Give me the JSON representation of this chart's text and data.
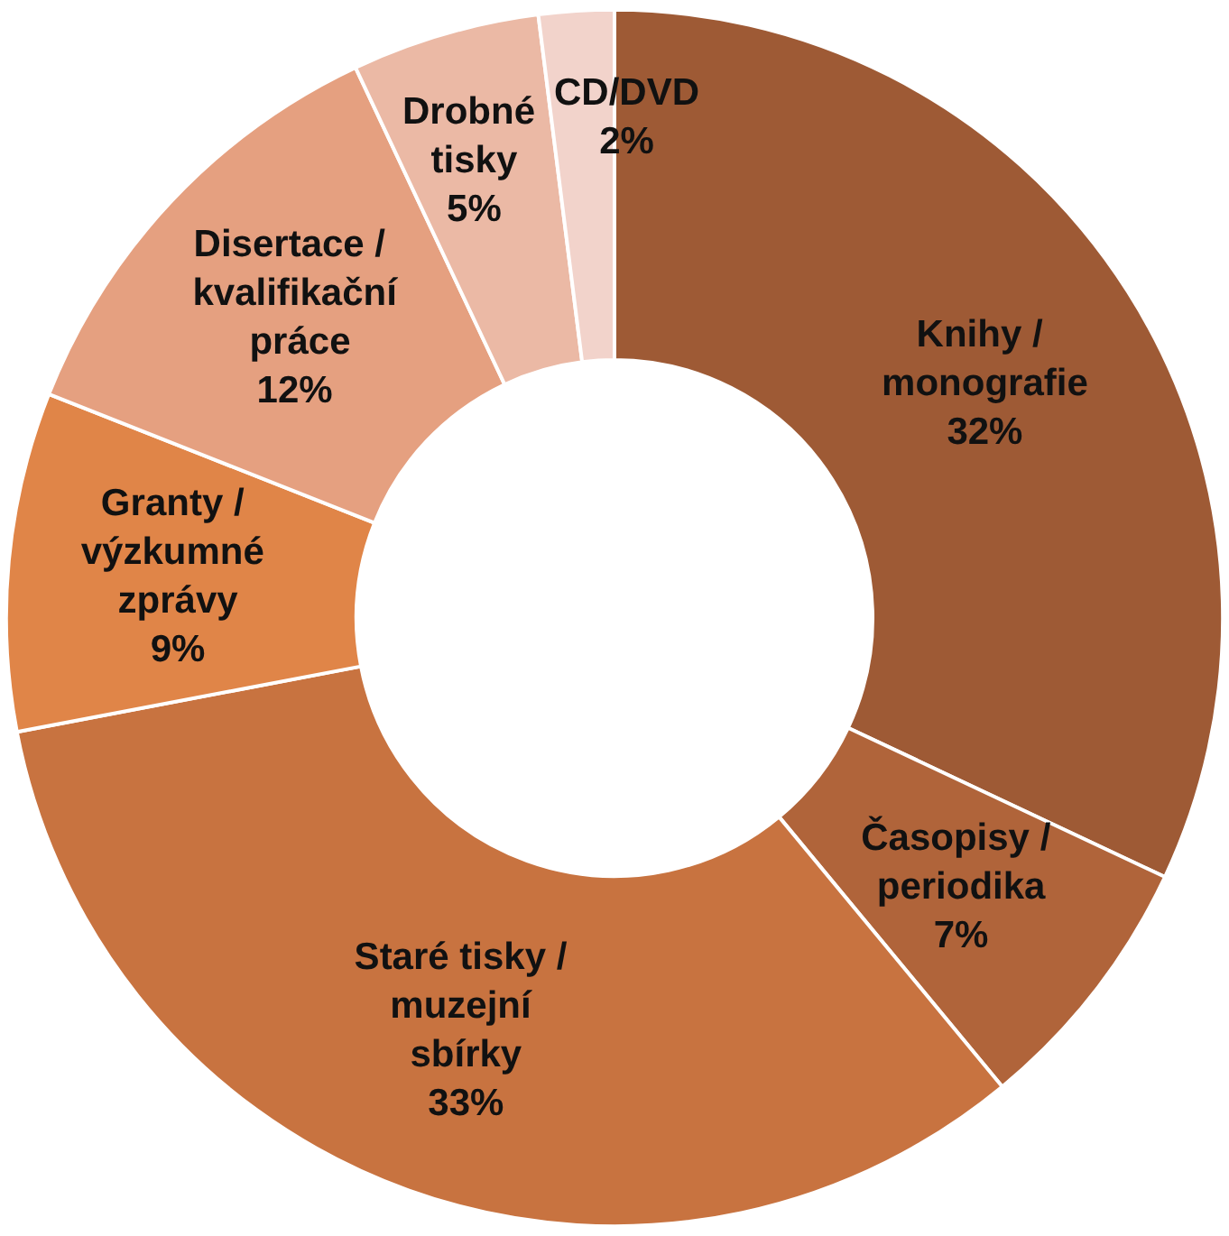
{
  "chart_data": {
    "type": "donut",
    "categories": [
      "Knihy / monografie",
      "Časopisy / periodika",
      "Staré tisky / muzejní sbírky",
      "Granty / výzkumné zprávy",
      "Disertace / kvalifikační práce",
      "Drobné tisky",
      "CD/DVD"
    ],
    "values": [
      32,
      7,
      33,
      9,
      12,
      5,
      2
    ],
    "colors": [
      "#9e5a35",
      "#b0643a",
      "#c87340",
      "#e08548",
      "#e5a080",
      "#ebb9a5",
      "#f2d3cb"
    ],
    "value_labels": [
      "32%",
      "7%",
      "33%",
      "9%",
      "12%",
      "5%",
      "2%"
    ],
    "legend": false
  }
}
